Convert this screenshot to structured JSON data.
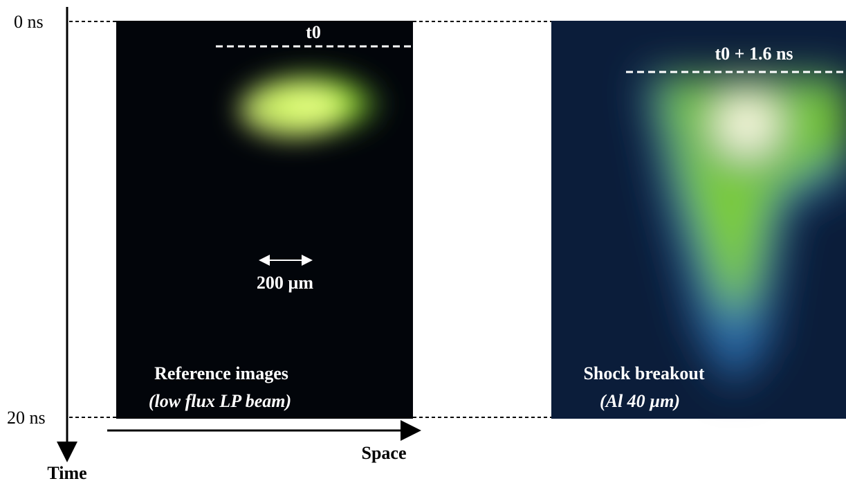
{
  "time_axis": {
    "label": "Time",
    "start_label": "0 ns",
    "end_label": "20 ns"
  },
  "space_axis": {
    "label": "Space"
  },
  "left_panel": {
    "marker": "t0",
    "scale_bar": "200 µm",
    "caption": "Reference images",
    "subcaption": "(low flux LP beam)"
  },
  "right_panel": {
    "marker": "t0 + 1.6 ns",
    "caption": "Shock breakout",
    "subcaption": "(Al 40 µm)"
  }
}
